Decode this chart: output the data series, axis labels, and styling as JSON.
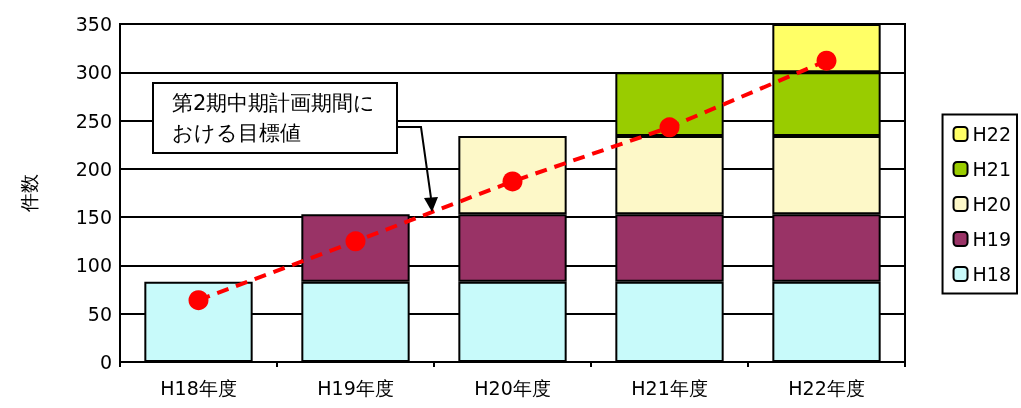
{
  "chart_data": {
    "type": "bar",
    "stacked": true,
    "categories": [
      "H18年度",
      "H19年度",
      "H20年度",
      "H21年度",
      "H22年度"
    ],
    "ylabel": "件数",
    "ylim": [
      0,
      350
    ],
    "yticks": [
      0,
      50,
      100,
      150,
      200,
      250,
      300,
      350
    ],
    "grid": "y",
    "legend": "right",
    "series": [
      {
        "name": "H18",
        "color": "#c8fafa",
        "values": [
          83,
          83,
          83,
          83,
          83
        ]
      },
      {
        "name": "H19",
        "color": "#993366",
        "values": [
          null,
          70,
          70,
          70,
          70
        ]
      },
      {
        "name": "H20",
        "color": "#fdf8c8",
        "values": [
          null,
          null,
          81,
          81,
          81
        ]
      },
      {
        "name": "H21",
        "color": "#99cc00",
        "values": [
          null,
          null,
          null,
          66,
          66
        ]
      },
      {
        "name": "H22",
        "color": "#ffff66",
        "values": [
          null,
          null,
          null,
          null,
          50
        ]
      },
      {
        "type": "line",
        "color": "#ff0000",
        "marker": "circle",
        "line_style": "dashed",
        "values": [
          64,
          125,
          187,
          243,
          312
        ]
      }
    ],
    "annotations": [
      "第2期中期計画期間における目標値"
    ]
  }
}
